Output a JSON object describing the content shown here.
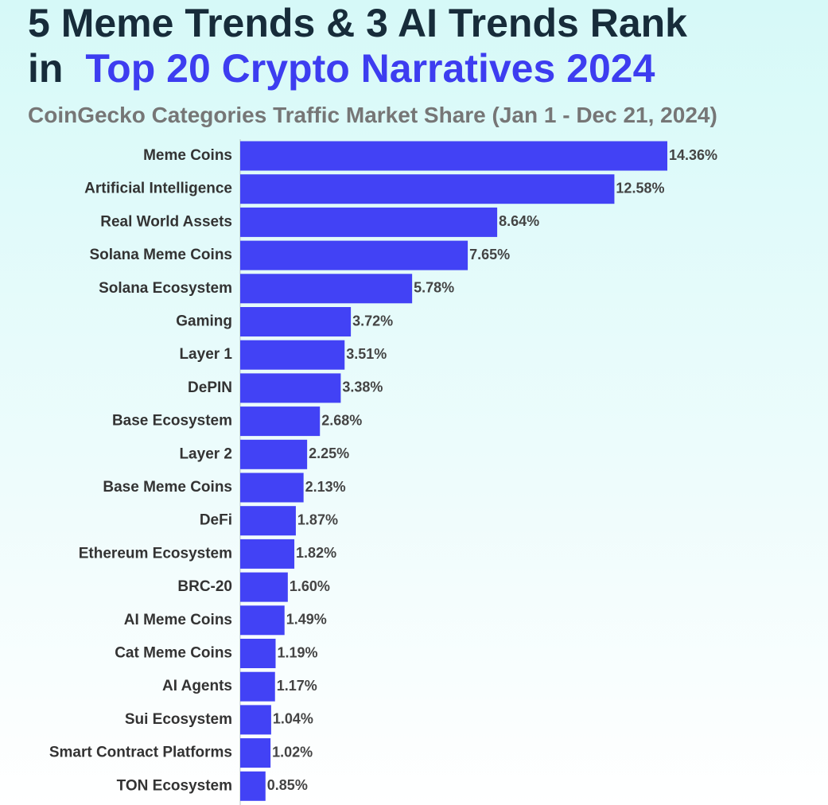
{
  "chart_data": {
    "type": "bar",
    "orientation": "horizontal",
    "title_parts": [
      {
        "text": "5 Meme Trends & 3 AI Trends Rank",
        "color": "#172c3a"
      },
      {
        "text": "in",
        "color": "#172c3a"
      },
      {
        "text": "Top 20 Crypto Narratives 2024",
        "color": "#3d3df0"
      }
    ],
    "subtitle": "CoinGecko Categories Traffic Market Share (Jan 1 - Dec 21, 2024)",
    "categories": [
      "Meme Coins",
      "Artificial Intelligence",
      "Real World Assets",
      "Solana Meme Coins",
      "Solana Ecosystem",
      "Gaming",
      "Layer 1",
      "DePIN",
      "Base Ecosystem",
      "Layer 2",
      "Base Meme Coins",
      "DeFi",
      "Ethereum Ecosystem",
      "BRC-20",
      "AI Meme Coins",
      "Cat Meme Coins",
      "AI Agents",
      "Sui Ecosystem",
      "Smart Contract Platforms",
      "TON Ecosystem"
    ],
    "values": [
      14.36,
      12.58,
      8.64,
      7.65,
      5.78,
      3.72,
      3.51,
      3.38,
      2.68,
      2.25,
      2.13,
      1.87,
      1.82,
      1.6,
      1.49,
      1.19,
      1.17,
      1.04,
      1.02,
      0.85
    ],
    "value_labels": [
      "14.36%",
      "12.58%",
      "8.64%",
      "7.65%",
      "5.78%",
      "3.72%",
      "3.51%",
      "3.38%",
      "2.68%",
      "2.25%",
      "2.13%",
      "1.87%",
      "1.82%",
      "1.60%",
      "1.49%",
      "1.19%",
      "1.17%",
      "1.04%",
      "1.02%",
      "0.85%"
    ],
    "color": "#4242f5"
  }
}
